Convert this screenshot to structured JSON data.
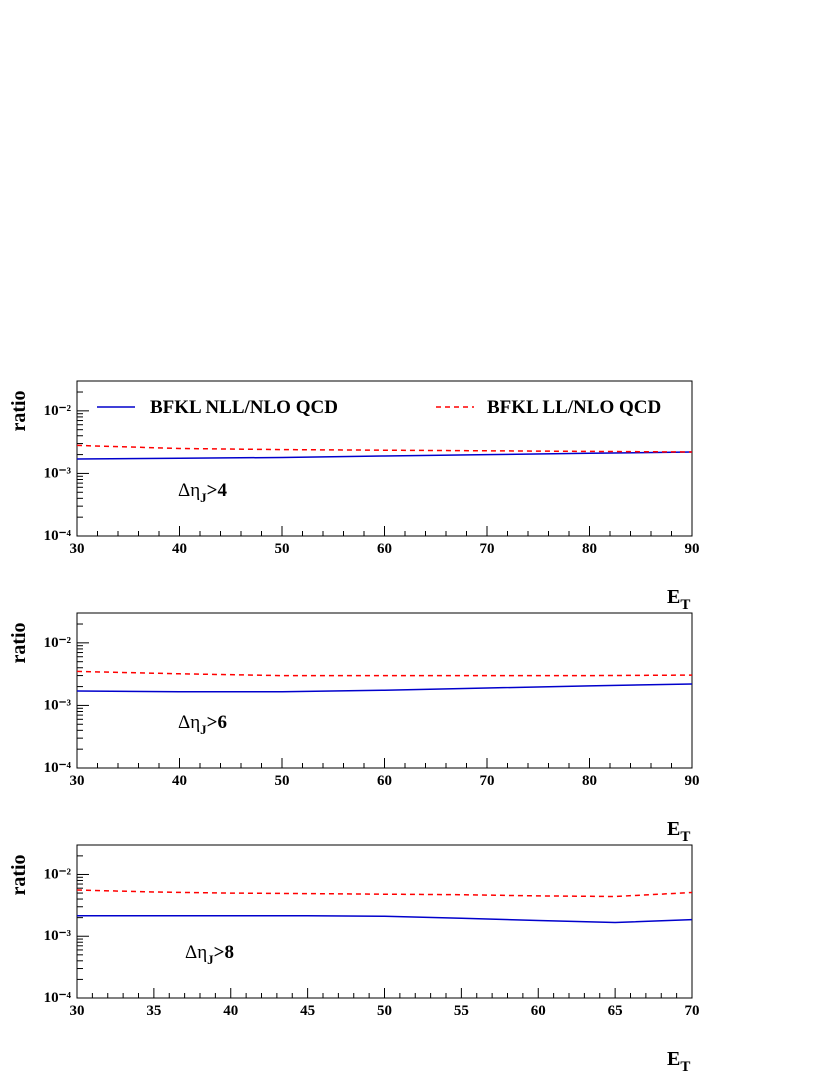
{
  "chart_data": [
    {
      "type": "line",
      "ylabel": "ratio",
      "xlabel": {
        "text": "E",
        "sub": "T"
      },
      "annotation": {
        "text": "Δη",
        "sub": "J",
        "tail": ">4"
      },
      "log_y": true,
      "legend": "top",
      "xlim": [
        30,
        90
      ],
      "xticks": [
        30,
        40,
        50,
        60,
        70,
        80,
        90
      ],
      "ylim": [
        0.0001,
        0.03
      ],
      "yticks": [
        {
          "value": 0.0001,
          "label": "10⁻⁴"
        },
        {
          "value": 0.001,
          "label": "10⁻³"
        },
        {
          "value": 0.01,
          "label": "10⁻²"
        }
      ],
      "x": [
        30,
        40,
        50,
        60,
        70,
        80,
        90
      ],
      "series": [
        {
          "name": "BFKL NLL/NLO QCD",
          "color": "#0000cc",
          "dash": false,
          "values": [
            0.0017,
            0.00175,
            0.0018,
            0.0019,
            0.002,
            0.0021,
            0.0022
          ]
        },
        {
          "name": "BFKL LL/NLO QCD",
          "color": "#ff0000",
          "dash": true,
          "values": [
            0.0028,
            0.0025,
            0.0024,
            0.00235,
            0.0023,
            0.00225,
            0.0022
          ]
        }
      ]
    },
    {
      "type": "line",
      "ylabel": "ratio",
      "xlabel": {
        "text": "E",
        "sub": "T"
      },
      "annotation": {
        "text": "Δη",
        "sub": "J",
        "tail": ">6"
      },
      "log_y": true,
      "xlim": [
        30,
        90
      ],
      "xticks": [
        30,
        40,
        50,
        60,
        70,
        80,
        90
      ],
      "ylim": [
        0.0001,
        0.03
      ],
      "yticks": [
        {
          "value": 0.0001,
          "label": "10⁻⁴"
        },
        {
          "value": 0.001,
          "label": "10⁻³"
        },
        {
          "value": 0.01,
          "label": "10⁻²"
        }
      ],
      "x": [
        30,
        40,
        50,
        60,
        70,
        80,
        90
      ],
      "series": [
        {
          "color": "#0000cc",
          "dash": false,
          "values": [
            0.0017,
            0.00165,
            0.00165,
            0.00175,
            0.0019,
            0.00205,
            0.0022
          ]
        },
        {
          "color": "#ff0000",
          "dash": true,
          "values": [
            0.0035,
            0.0032,
            0.003,
            0.003,
            0.003,
            0.003,
            0.00305
          ]
        }
      ]
    },
    {
      "type": "line",
      "ylabel": "ratio",
      "xlabel": {
        "text": "E",
        "sub": "T"
      },
      "annotation": {
        "text": "Δη",
        "sub": "J",
        "tail": ">8"
      },
      "log_y": true,
      "xlim": [
        30,
        70
      ],
      "xticks": [
        30,
        35,
        40,
        45,
        50,
        55,
        60,
        65,
        70
      ],
      "ylim": [
        0.0001,
        0.03
      ],
      "yticks": [
        {
          "value": 0.0001,
          "label": "10⁻⁴"
        },
        {
          "value": 0.001,
          "label": "10⁻³"
        },
        {
          "value": 0.01,
          "label": "10⁻²"
        }
      ],
      "x": [
        30,
        35,
        40,
        45,
        50,
        55,
        60,
        65,
        70
      ],
      "series": [
        {
          "color": "#0000cc",
          "dash": false,
          "values": [
            0.00215,
            0.00215,
            0.00215,
            0.00215,
            0.0021,
            0.00195,
            0.0018,
            0.00167,
            0.00186
          ]
        },
        {
          "color": "#ff0000",
          "dash": true,
          "values": [
            0.0056,
            0.0052,
            0.005,
            0.0049,
            0.0048,
            0.0047,
            0.0045,
            0.0044,
            0.0051
          ]
        }
      ]
    }
  ]
}
